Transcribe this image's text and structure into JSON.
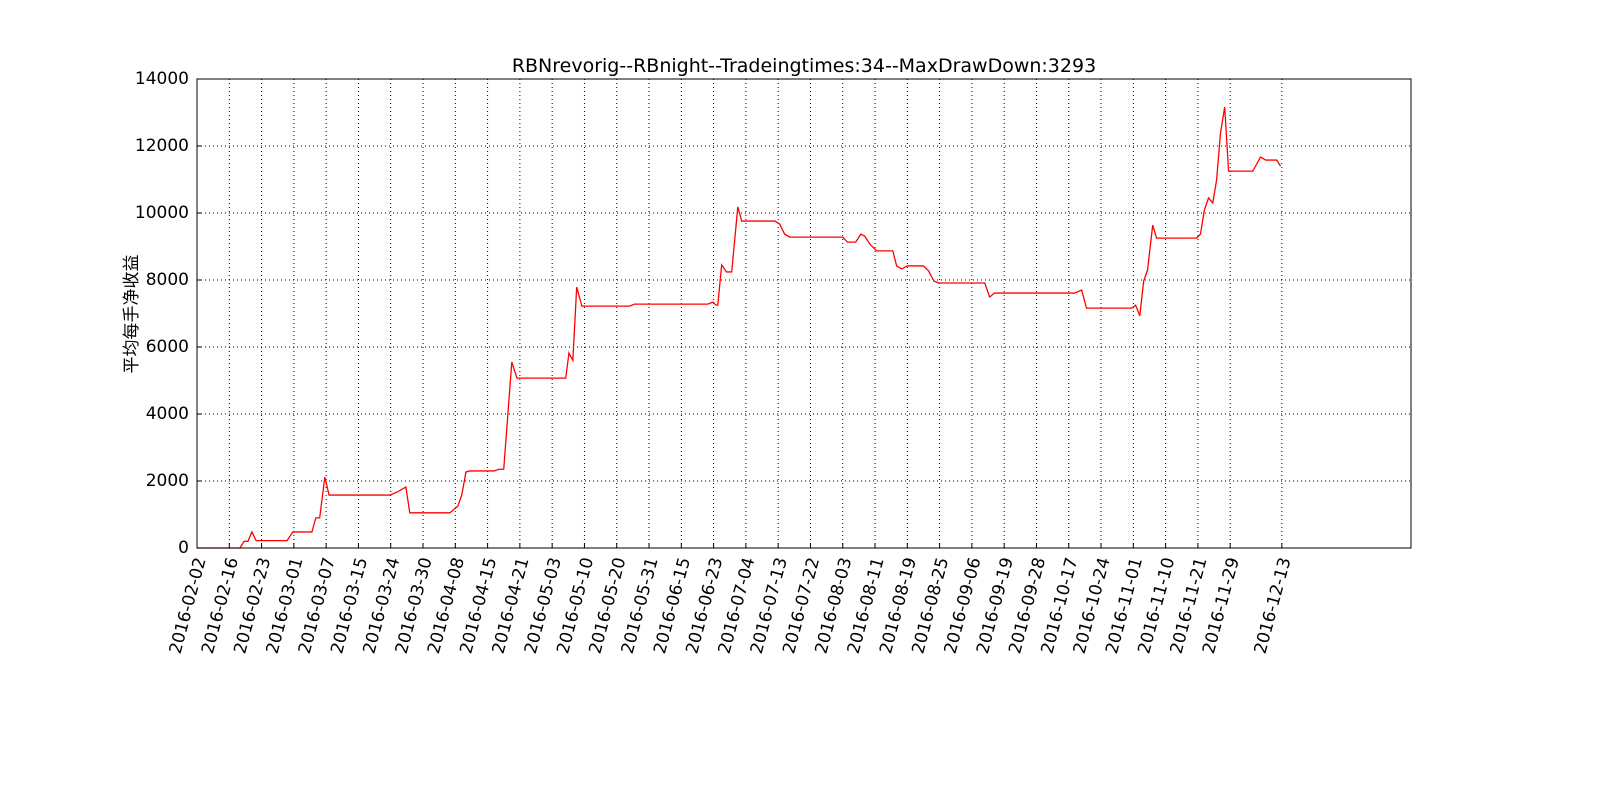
{
  "chart_data": {
    "type": "line",
    "title": "RBNrevorig--RBnight--Tradeingtimes:34--MaxDrawDown:3293",
    "y_label": "平均每手净收益",
    "color": "#ff0000",
    "grid": true,
    "x": [
      0,
      13.3,
      14.6,
      15.8,
      17,
      18.3,
      27.9,
      29.7,
      35.6,
      36.8,
      38,
      39.6,
      40.9,
      59.8,
      62.2,
      64.7,
      65.9,
      78.3,
      80.8,
      82,
      83.3,
      84.5,
      92,
      93.5,
      95,
      97.5,
      99.1,
      114.2,
      115.2,
      116.4,
      117.6,
      119.2,
      134,
      135.5,
      158.2,
      159.8,
      160.7,
      161.3,
      162.5,
      164,
      165.6,
      167.5,
      168.7,
      179,
      180.5,
      182,
      183.6,
      200,
      201.5,
      204,
      205.6,
      206.8,
      208.4,
      210.5,
      215.5,
      216.7,
      218.3,
      220,
      225,
      226.6,
      228.2,
      229.7,
      244,
      245.5,
      247,
      271.8,
      274,
      275.5,
      289.5,
      290.7,
      292,
      293.2,
      294.4,
      296,
      297.2,
      309.6,
      310.8,
      312,
      313.3,
      314.6,
      315.8,
      317,
      318.3,
      319.5,
      327,
      329.4,
      331,
      334.4,
      335.6
    ],
    "values": [
      0,
      0,
      200,
      200,
      480,
      220,
      220,
      480,
      480,
      900,
      900,
      2120,
      1580,
      1580,
      1680,
      1820,
      1050,
      1050,
      1250,
      1580,
      2270,
      2300,
      2300,
      2350,
      2350,
      5550,
      5070,
      5070,
      5820,
      5600,
      7790,
      7220,
      7220,
      7280,
      7280,
      7340,
      7250,
      7250,
      8450,
      8240,
      8240,
      10180,
      9760,
      9760,
      9670,
      9370,
      9280,
      9280,
      9130,
      9130,
      9370,
      9310,
      9070,
      8870,
      8870,
      8420,
      8330,
      8420,
      8420,
      8270,
      7970,
      7910,
      7910,
      7490,
      7610,
      7610,
      7700,
      7160,
      7160,
      7250,
      6930,
      7970,
      8300,
      9640,
      9250,
      9250,
      9370,
      10090,
      10450,
      10300,
      10990,
      12390,
      13160,
      11250,
      11250,
      11670,
      11580,
      11580,
      11400
    ],
    "xlim": [
      0,
      376
    ],
    "ylim": [
      0,
      14000
    ],
    "yticks": [
      0,
      2000,
      4000,
      6000,
      8000,
      10000,
      12000,
      14000
    ],
    "xticks": [
      {
        "value": 0,
        "label": "2016-02-02"
      },
      {
        "value": 10,
        "label": "2016-02-16"
      },
      {
        "value": 20,
        "label": "2016-02-23"
      },
      {
        "value": 30,
        "label": "2016-03-01"
      },
      {
        "value": 40,
        "label": "2016-03-07"
      },
      {
        "value": 50,
        "label": "2016-03-15"
      },
      {
        "value": 60,
        "label": "2016-03-24"
      },
      {
        "value": 70,
        "label": "2016-03-30"
      },
      {
        "value": 80,
        "label": "2016-04-08"
      },
      {
        "value": 90,
        "label": "2016-04-15"
      },
      {
        "value": 100,
        "label": "2016-04-21"
      },
      {
        "value": 110,
        "label": "2016-05-03"
      },
      {
        "value": 120,
        "label": "2016-05-10"
      },
      {
        "value": 130,
        "label": "2016-05-20"
      },
      {
        "value": 140,
        "label": "2016-05-31"
      },
      {
        "value": 150,
        "label": "2016-06-15"
      },
      {
        "value": 160,
        "label": "2016-06-23"
      },
      {
        "value": 170,
        "label": "2016-07-04"
      },
      {
        "value": 180,
        "label": "2016-07-13"
      },
      {
        "value": 190,
        "label": "2016-07-22"
      },
      {
        "value": 200,
        "label": "2016-08-03"
      },
      {
        "value": 210,
        "label": "2016-08-11"
      },
      {
        "value": 220,
        "label": "2016-08-19"
      },
      {
        "value": 230,
        "label": "2016-08-25"
      },
      {
        "value": 240,
        "label": "2016-09-06"
      },
      {
        "value": 250,
        "label": "2016-09-19"
      },
      {
        "value": 260,
        "label": "2016-09-28"
      },
      {
        "value": 270,
        "label": "2016-10-17"
      },
      {
        "value": 280,
        "label": "2016-10-24"
      },
      {
        "value": 290,
        "label": "2016-11-01"
      },
      {
        "value": 300,
        "label": "2016-11-10"
      },
      {
        "value": 310,
        "label": "2016-11-21"
      },
      {
        "value": 320,
        "label": "2016-11-29"
      },
      {
        "value": 336,
        "label": "2016-12-13"
      }
    ]
  }
}
